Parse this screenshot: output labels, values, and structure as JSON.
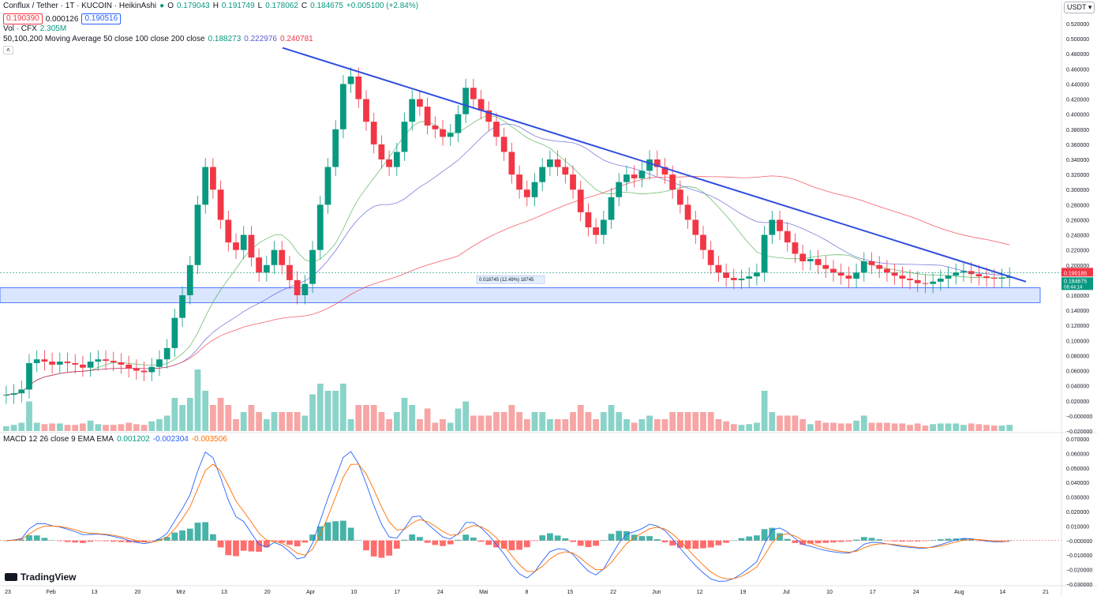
{
  "header": {
    "symbol": "Conflux / Tether · 1T · KUCOIN · HeikinAshi",
    "o_label": "O",
    "o": "0.179043",
    "h_label": "H",
    "h": "0.191749",
    "l_label": "L",
    "l": "0.178062",
    "c_label": "C",
    "c": "0.184675",
    "change": "+0.005100 (+2.84%)",
    "sell": "0.190390",
    "spread": "0.000126",
    "buy": "0.190516",
    "vol_label": "Vol · CFX",
    "vol": "2.305M",
    "ma_label": "50,100,200 Moving Average 50 close 100 close 200 close",
    "ma50": "0.188273",
    "ma100": "0.222976",
    "ma200": "0.240781",
    "macd_label": "MACD 12 26 close 9 EMA EMA",
    "macd_hist": "0.001202",
    "macd_line": "-0.002304",
    "macd_signal": "-0.003506"
  },
  "currency": "USDT",
  "brand": "TradingView",
  "chart_data": {
    "type": "candlestick",
    "price_axis": {
      "min": -0.02,
      "max": 0.52,
      "ticks": [
        "0.520000",
        "0.500000",
        "0.480000",
        "0.460000",
        "0.440000",
        "0.420000",
        "0.400000",
        "0.380000",
        "0.360000",
        "0.340000",
        "0.320000",
        "0.300000",
        "0.280000",
        "0.260000",
        "0.240000",
        "0.220000",
        "0.200000",
        "0.180000",
        "0.160000",
        "0.140000",
        "0.120000",
        "0.100000",
        "0.080000",
        "0.060000",
        "0.040000",
        "0.020000",
        "−0.000000",
        "−0.020000"
      ]
    },
    "macd_axis": {
      "min": -0.03,
      "max": 0.07,
      "ticks": [
        "0.070000",
        "0.060000",
        "0.050000",
        "0.040000",
        "0.030000",
        "0.020000",
        "0.010000",
        "−0.000000",
        "−0.010000",
        "−0.020000",
        "−0.030000"
      ]
    },
    "time_axis": [
      "23",
      "Feb",
      "13",
      "20",
      "Mrz",
      "13",
      "20",
      "Apr",
      "10",
      "17",
      "24",
      "Mai",
      "8",
      "15",
      "22",
      "Jun",
      "12",
      "19",
      "Jul",
      "10",
      "17",
      "24",
      "Aug",
      "14",
      "21"
    ],
    "last_price": "0.190185",
    "current_price": "0.184675",
    "countdown": "08:44:14",
    "measure_label": "0.018745 (12.49%) 18745",
    "support_zone": [
      0.15,
      0.17
    ],
    "trendline": [
      [
        0.488,
        0.178
      ]
    ],
    "closes": [
      0.028,
      0.03,
      0.035,
      0.07,
      0.075,
      0.072,
      0.068,
      0.072,
      0.07,
      0.068,
      0.064,
      0.072,
      0.075,
      0.073,
      0.071,
      0.068,
      0.063,
      0.06,
      0.058,
      0.065,
      0.075,
      0.09,
      0.13,
      0.16,
      0.2,
      0.28,
      0.33,
      0.3,
      0.26,
      0.23,
      0.22,
      0.24,
      0.21,
      0.19,
      0.2,
      0.22,
      0.2,
      0.18,
      0.16,
      0.175,
      0.22,
      0.28,
      0.33,
      0.38,
      0.44,
      0.45,
      0.42,
      0.39,
      0.36,
      0.34,
      0.33,
      0.35,
      0.39,
      0.42,
      0.41,
      0.385,
      0.38,
      0.37,
      0.375,
      0.4,
      0.435,
      0.42,
      0.405,
      0.39,
      0.37,
      0.35,
      0.32,
      0.3,
      0.29,
      0.31,
      0.33,
      0.34,
      0.33,
      0.32,
      0.3,
      0.27,
      0.25,
      0.24,
      0.26,
      0.29,
      0.31,
      0.32,
      0.315,
      0.325,
      0.34,
      0.33,
      0.32,
      0.3,
      0.28,
      0.26,
      0.24,
      0.22,
      0.2,
      0.19,
      0.183,
      0.18,
      0.182,
      0.185,
      0.19,
      0.24,
      0.26,
      0.245,
      0.23,
      0.215,
      0.205,
      0.208,
      0.2,
      0.195,
      0.19,
      0.186,
      0.182,
      0.19,
      0.205,
      0.2,
      0.195,
      0.19,
      0.186,
      0.182,
      0.18,
      0.176,
      0.175,
      0.178,
      0.182,
      0.186,
      0.19,
      0.192,
      0.188,
      0.185,
      0.183,
      0.182,
      0.183,
      0.185
    ]
  }
}
